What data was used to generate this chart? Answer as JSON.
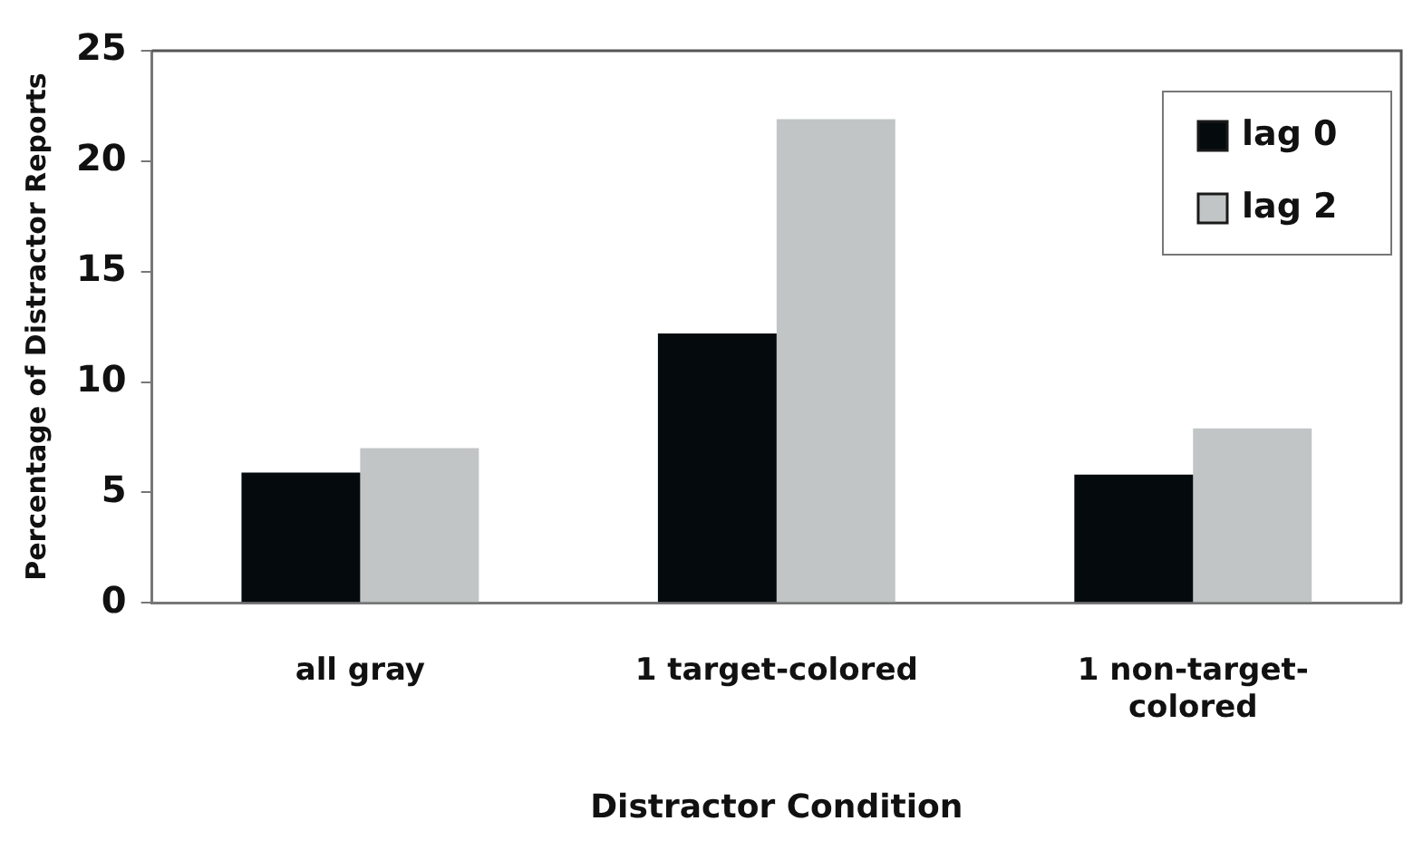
{
  "chart_data": {
    "type": "bar",
    "xlabel": "Distractor Condition",
    "ylabel": "Percentage of Distractor Reports",
    "categories": [
      "all gray",
      "1 target-colored",
      "1 non-target-colored"
    ],
    "series": [
      {
        "name": "lag 0",
        "color": "#050a0d",
        "values": [
          5.9,
          12.2,
          5.8
        ]
      },
      {
        "name": "lag 2",
        "color": "#c2c5c5",
        "values": [
          7.0,
          21.9,
          7.9
        ]
      }
    ],
    "ylim": [
      0,
      25
    ],
    "yticks": [
      0,
      5,
      10,
      15,
      20,
      25
    ],
    "grid": false,
    "legend": "top right"
  }
}
